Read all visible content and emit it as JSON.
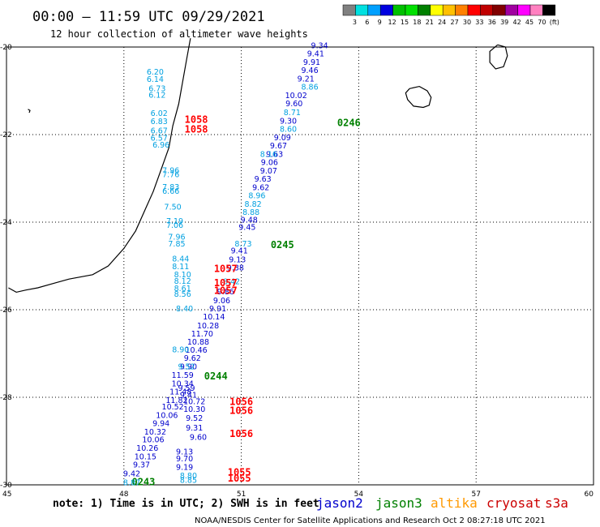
{
  "header": {
    "title": "00:00 – 11:59 UTC 09/29/2021",
    "subtitle": "12 hour collection of altimeter wave heights"
  },
  "colorbar": {
    "colors": [
      "#808080",
      "#00e0e0",
      "#00a0ff",
      "#0000e0",
      "#00c000",
      "#00e000",
      "#008000",
      "#ffff00",
      "#ffc000",
      "#ff8000",
      "#ff0000",
      "#c00000",
      "#800000",
      "#a000a0",
      "#ff00ff",
      "#ff80c0",
      "#000000"
    ],
    "labels": [
      "3",
      "6",
      "9",
      "12",
      "15",
      "18",
      "21",
      "24",
      "27",
      "30",
      "33",
      "36",
      "39",
      "42",
      "45",
      "70",
      "(ft)"
    ]
  },
  "chart_data": {
    "type": "scatter",
    "title": "00:00 – 11:59 UTC 09/29/2021",
    "subtitle": "12 hour collection of altimeter wave heights",
    "x_ticks": [
      "45",
      "48",
      "51",
      "54",
      "57",
      "60"
    ],
    "y_ticks": [
      "-20",
      "-22",
      "-24",
      "-26",
      "-28",
      "-30"
    ],
    "xlim": [
      45,
      60
    ],
    "ylim": [
      -30,
      -20
    ],
    "grid": true,
    "units": "ft",
    "series": [
      {
        "name": "jason2",
        "color": "#0000cc",
        "points": [
          {
            "lon": 53.0,
            "lat": -19.97,
            "v": "9.34"
          },
          {
            "lon": 52.9,
            "lat": -20.16,
            "v": "9.41"
          },
          {
            "lon": 52.8,
            "lat": -20.35,
            "v": "9.91"
          },
          {
            "lon": 52.75,
            "lat": -20.54,
            "v": "9.46"
          },
          {
            "lon": 52.65,
            "lat": -20.73,
            "v": "9.21"
          },
          {
            "lon": 52.4,
            "lat": -21.11,
            "v": "10.02"
          },
          {
            "lon": 52.35,
            "lat": -21.3,
            "v": "9.60"
          },
          {
            "lon": 52.2,
            "lat": -21.69,
            "v": "9.30"
          },
          {
            "lon": 52.05,
            "lat": -22.07,
            "v": "9.09"
          },
          {
            "lon": 51.95,
            "lat": -22.26,
            "v": "9.67"
          },
          {
            "lon": 51.85,
            "lat": -22.45,
            "v": "9.63"
          },
          {
            "lon": 51.72,
            "lat": -22.64,
            "v": "9.06"
          },
          {
            "lon": 51.7,
            "lat": -22.83,
            "v": "9.07"
          },
          {
            "lon": 51.55,
            "lat": -23.02,
            "v": "9.63"
          },
          {
            "lon": 51.5,
            "lat": -23.21,
            "v": "9.62"
          },
          {
            "lon": 51.2,
            "lat": -23.95,
            "v": "9.48"
          },
          {
            "lon": 51.15,
            "lat": -24.12,
            "v": "9.45"
          },
          {
            "lon": 50.95,
            "lat": -24.66,
            "v": "9.41"
          },
          {
            "lon": 50.9,
            "lat": -24.86,
            "v": "9.13"
          },
          {
            "lon": 50.85,
            "lat": -25.05,
            "v": "9.38"
          },
          {
            "lon": 50.6,
            "lat": -25.59,
            "v": "9.86"
          },
          {
            "lon": 50.5,
            "lat": -25.8,
            "v": "9.06"
          },
          {
            "lon": 50.4,
            "lat": -25.98,
            "v": "9.91"
          },
          {
            "lon": 50.3,
            "lat": -26.17,
            "v": "10.14"
          },
          {
            "lon": 50.15,
            "lat": -26.37,
            "v": "10.28"
          },
          {
            "lon": 50.0,
            "lat": -26.56,
            "v": "11.70"
          },
          {
            "lon": 49.9,
            "lat": -26.74,
            "v": "10.88"
          },
          {
            "lon": 49.85,
            "lat": -26.93,
            "v": "10.46"
          },
          {
            "lon": 49.75,
            "lat": -27.11,
            "v": "9.62"
          },
          {
            "lon": 49.65,
            "lat": -27.31,
            "v": "9.90"
          },
          {
            "lon": 49.5,
            "lat": -27.5,
            "v": "11.59"
          },
          {
            "lon": 49.5,
            "lat": -27.69,
            "v": "10.34"
          },
          {
            "lon": 49.6,
            "lat": -27.8,
            "v": "9.59"
          },
          {
            "lon": 49.45,
            "lat": -27.88,
            "v": "11.48"
          },
          {
            "lon": 49.65,
            "lat": -27.95,
            "v": "9.41"
          },
          {
            "lon": 49.35,
            "lat": -28.07,
            "v": "11.82"
          },
          {
            "lon": 49.8,
            "lat": -28.1,
            "v": "10.72"
          },
          {
            "lon": 49.25,
            "lat": -28.22,
            "v": "10.52"
          },
          {
            "lon": 49.8,
            "lat": -28.28,
            "v": "10.30"
          },
          {
            "lon": 49.1,
            "lat": -28.42,
            "v": "10.06"
          },
          {
            "lon": 49.8,
            "lat": -28.48,
            "v": "9.52"
          },
          {
            "lon": 48.95,
            "lat": -28.6,
            "v": "9.94"
          },
          {
            "lon": 49.8,
            "lat": -28.7,
            "v": "9.31"
          },
          {
            "lon": 48.8,
            "lat": -28.8,
            "v": "10.32"
          },
          {
            "lon": 49.9,
            "lat": -28.92,
            "v": "9.60"
          },
          {
            "lon": 48.75,
            "lat": -28.97,
            "v": "10.06"
          },
          {
            "lon": 48.6,
            "lat": -29.17,
            "v": "10.26"
          },
          {
            "lon": 48.55,
            "lat": -29.36,
            "v": "10.15"
          },
          {
            "lon": 48.45,
            "lat": -29.55,
            "v": "9.37"
          },
          {
            "lon": 48.2,
            "lat": -29.75,
            "v": "9.42"
          },
          {
            "lon": 49.55,
            "lat": -29.6,
            "v": "9.19"
          },
          {
            "lon": 49.55,
            "lat": -29.25,
            "v": "9.13"
          },
          {
            "lon": 49.55,
            "lat": -29.41,
            "v": "9.70"
          }
        ]
      },
      {
        "name": "jason3",
        "color": "#008000",
        "points": [
          {
            "lon": 53.75,
            "lat": -21.75,
            "v": "0246"
          },
          {
            "lon": 52.05,
            "lat": -24.54,
            "v": "0245"
          },
          {
            "lon": 50.35,
            "lat": -27.54,
            "v": "0244"
          },
          {
            "lon": 48.5,
            "lat": -29.95,
            "v": "0243"
          }
        ]
      },
      {
        "name": "altika",
        "color": "#00a0e0",
        "points": [
          {
            "lon": 52.75,
            "lat": -20.92,
            "v": "8.86"
          },
          {
            "lon": 52.3,
            "lat": -21.5,
            "v": "8.71"
          },
          {
            "lon": 52.2,
            "lat": -21.88,
            "v": "8.60"
          },
          {
            "lon": 51.7,
            "lat": -22.45,
            "v": "8.16"
          },
          {
            "lon": 51.4,
            "lat": -23.4,
            "v": "8.96"
          },
          {
            "lon": 51.3,
            "lat": -23.59,
            "v": "8.82"
          },
          {
            "lon": 51.25,
            "lat": -23.78,
            "v": "8.88"
          },
          {
            "lon": 51.05,
            "lat": -24.5,
            "v": "8.73"
          },
          {
            "lon": 50.75,
            "lat": -25.36,
            "v": "8.42"
          },
          {
            "lon": 49.45,
            "lat": -26.92,
            "v": "8.90"
          },
          {
            "lon": 49.6,
            "lat": -27.31,
            "v": "9.52"
          },
          {
            "lon": 49.65,
            "lat": -29.8,
            "v": "8.80"
          },
          {
            "lon": 49.65,
            "lat": -29.9,
            "v": "8.85"
          },
          {
            "lon": 48.2,
            "lat": -29.95,
            "v": "8.87"
          }
        ]
      },
      {
        "name": "cryosat",
        "color": "#ff0000",
        "points": [
          {
            "lon": 50.6,
            "lat": -25.08,
            "v": "1057"
          },
          {
            "lon": 50.6,
            "lat": -25.41,
            "v": "1057"
          },
          {
            "lon": 50.6,
            "lat": -25.58,
            "v": "1057"
          },
          {
            "lon": 51.0,
            "lat": -28.12,
            "v": "1056"
          },
          {
            "lon": 51.0,
            "lat": -28.32,
            "v": "1056"
          },
          {
            "lon": 51.0,
            "lat": -28.85,
            "v": "1056"
          },
          {
            "lon": 50.95,
            "lat": -29.73,
            "v": "1055"
          },
          {
            "lon": 50.95,
            "lat": -29.87,
            "v": "1055"
          },
          {
            "lon": 49.85,
            "lat": -21.68,
            "v": "1058"
          },
          {
            "lon": 49.85,
            "lat": -21.9,
            "v": "1058"
          }
        ]
      },
      {
        "name": "s3a",
        "color": "#00a0e0",
        "points": [
          {
            "lon": 48.8,
            "lat": -20.57,
            "v": "6.20"
          },
          {
            "lon": 48.8,
            "lat": -20.74,
            "v": "6.14"
          },
          {
            "lon": 48.85,
            "lat": -20.95,
            "v": "6.73"
          },
          {
            "lon": 48.85,
            "lat": -21.1,
            "v": "6.12"
          },
          {
            "lon": 48.9,
            "lat": -21.52,
            "v": "6.02"
          },
          {
            "lon": 48.9,
            "lat": -21.7,
            "v": "6.83"
          },
          {
            "lon": 48.9,
            "lat": -21.92,
            "v": "6.67"
          },
          {
            "lon": 48.9,
            "lat": -22.08,
            "v": "6.57"
          },
          {
            "lon": 48.95,
            "lat": -22.24,
            "v": "6.96"
          },
          {
            "lon": 49.2,
            "lat": -22.82,
            "v": "7.96"
          },
          {
            "lon": 49.2,
            "lat": -22.92,
            "v": "7.76"
          },
          {
            "lon": 49.2,
            "lat": -23.2,
            "v": "7.83"
          },
          {
            "lon": 49.2,
            "lat": -23.3,
            "v": "6.66"
          },
          {
            "lon": 49.25,
            "lat": -23.66,
            "v": "7.50"
          },
          {
            "lon": 49.3,
            "lat": -23.98,
            "v": "7.19"
          },
          {
            "lon": 49.3,
            "lat": -24.07,
            "v": "7.06"
          },
          {
            "lon": 49.35,
            "lat": -24.34,
            "v": "7.96"
          },
          {
            "lon": 49.35,
            "lat": -24.5,
            "v": "7.85"
          },
          {
            "lon": 49.45,
            "lat": -24.84,
            "v": "8.44"
          },
          {
            "lon": 49.45,
            "lat": -25.02,
            "v": "8.11"
          },
          {
            "lon": 49.5,
            "lat": -25.2,
            "v": "8.10"
          },
          {
            "lon": 49.5,
            "lat": -25.35,
            "v": "8.12"
          },
          {
            "lon": 49.5,
            "lat": -25.52,
            "v": "8.61"
          },
          {
            "lon": 49.5,
            "lat": -25.65,
            "v": "8.56"
          },
          {
            "lon": 49.55,
            "lat": -25.98,
            "v": "8.40"
          }
        ]
      }
    ]
  },
  "coastlines": {
    "madagascar": [
      [
        49.7,
        -19.8
      ],
      [
        49.6,
        -20.3
      ],
      [
        49.5,
        -20.8
      ],
      [
        49.4,
        -21.3
      ],
      [
        49.25,
        -21.8
      ],
      [
        49.15,
        -22.3
      ],
      [
        48.95,
        -22.8
      ],
      [
        48.75,
        -23.3
      ],
      [
        48.5,
        -23.8
      ],
      [
        48.3,
        -24.2
      ],
      [
        48.0,
        -24.6
      ],
      [
        47.6,
        -25.0
      ],
      [
        47.2,
        -25.2
      ],
      [
        46.6,
        -25.3
      ],
      [
        46.2,
        -25.4
      ],
      [
        45.8,
        -25.5
      ],
      [
        45.5,
        -25.55
      ],
      [
        45.25,
        -25.6
      ],
      [
        45.05,
        -25.5
      ]
    ],
    "reunion": [
      [
        55.3,
        -20.95
      ],
      [
        55.55,
        -20.9
      ],
      [
        55.75,
        -21.0
      ],
      [
        55.85,
        -21.15
      ],
      [
        55.8,
        -21.33
      ],
      [
        55.65,
        -21.38
      ],
      [
        55.4,
        -21.35
      ],
      [
        55.25,
        -21.2
      ],
      [
        55.2,
        -21.05
      ],
      [
        55.3,
        -20.95
      ]
    ],
    "mauritius": [
      [
        57.55,
        -19.95
      ],
      [
        57.75,
        -20.0
      ],
      [
        57.8,
        -20.2
      ],
      [
        57.7,
        -20.45
      ],
      [
        57.5,
        -20.5
      ],
      [
        57.35,
        -20.35
      ],
      [
        57.35,
        -20.1
      ],
      [
        57.55,
        -19.95
      ]
    ],
    "islet": [
      [
        45.55,
        -21.42
      ],
      [
        45.6,
        -21.45
      ],
      [
        45.58,
        -21.5
      ]
    ]
  },
  "footer": {
    "note": "note: 1) Time is in UTC; 2) SWH is in feet",
    "credit": "NOAA/NESDIS Center for Satellite Applications and Research   Oct  2 08:27:18 UTC 2021",
    "legend": [
      {
        "label": "jason2",
        "color": "#0000cc"
      },
      {
        "label": "jason3",
        "color": "#008000"
      },
      {
        "label": "altika",
        "color": "#ff9900"
      },
      {
        "label": "cryosat",
        "color": "#cc0000"
      },
      {
        "label": "s3a",
        "color": "#cc0000"
      }
    ]
  }
}
